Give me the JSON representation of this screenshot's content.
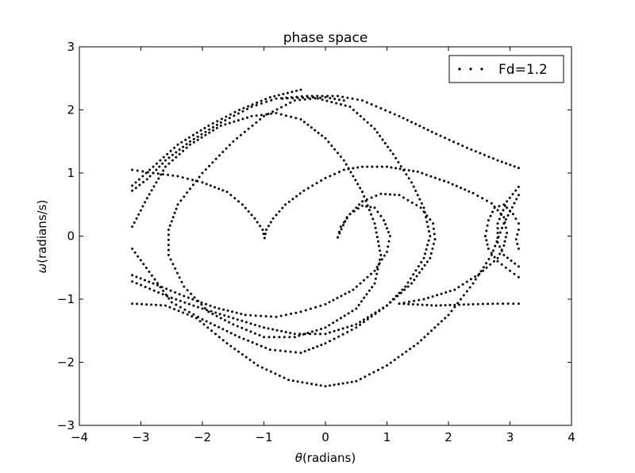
{
  "chart_data": {
    "type": "scatter",
    "title": "phase space",
    "xlabel_symbol": "θ",
    "xlabel_text": "(radians)",
    "ylabel_symbol": "ω",
    "ylabel_text": "(radians/s)",
    "xlim": [
      -4,
      4
    ],
    "ylim": [
      -3,
      3
    ],
    "xticks": [
      -4,
      -3,
      -2,
      -1,
      0,
      1,
      2,
      3,
      4
    ],
    "yticks": [
      -3,
      -2,
      -1,
      0,
      1,
      2,
      3
    ],
    "xtick_labels": [
      "−4",
      "−3",
      "−2",
      "−1",
      "0",
      "1",
      "2",
      "3",
      "4"
    ],
    "ytick_labels": [
      "−3",
      "−2",
      "−1",
      "0",
      "1",
      "2",
      "3"
    ],
    "grid": false,
    "legend_position": "top-right",
    "marker_color": "#000000",
    "series": [
      {
        "name": "Fd=1.2",
        "curves": [
          [
            [
              -3.14,
              1.05
            ],
            [
              -2.8,
              1.0
            ],
            [
              -2.4,
              0.95
            ],
            [
              -2.0,
              0.85
            ],
            [
              -1.6,
              0.7
            ],
            [
              -1.35,
              0.5
            ],
            [
              -1.15,
              0.28
            ],
            [
              -1.02,
              0.1
            ],
            [
              -0.99,
              -0.03
            ]
          ],
          [
            [
              -0.99,
              -0.03
            ],
            [
              -0.96,
              0.1
            ],
            [
              -0.85,
              0.28
            ],
            [
              -0.65,
              0.5
            ],
            [
              -0.35,
              0.72
            ],
            [
              0.0,
              0.92
            ],
            [
              0.3,
              1.05
            ],
            [
              0.6,
              1.1
            ],
            [
              1.0,
              1.1
            ],
            [
              1.5,
              1.02
            ],
            [
              2.0,
              0.85
            ],
            [
              2.4,
              0.68
            ],
            [
              2.7,
              0.52
            ],
            [
              2.9,
              0.3
            ],
            [
              2.95,
              0.05
            ],
            [
              2.9,
              -0.15
            ],
            [
              2.8,
              -0.35
            ],
            [
              2.5,
              -0.6
            ],
            [
              2.1,
              -0.85
            ],
            [
              1.6,
              -1.0
            ],
            [
              1.2,
              -1.07
            ]
          ],
          [
            [
              0.2,
              -0.02
            ],
            [
              0.25,
              0.15
            ],
            [
              0.4,
              0.35
            ],
            [
              0.6,
              0.48
            ],
            [
              0.8,
              0.45
            ],
            [
              0.95,
              0.25
            ],
            [
              1.05,
              0.0
            ],
            [
              1.0,
              -0.25
            ],
            [
              0.8,
              -0.55
            ],
            [
              0.45,
              -0.85
            ],
            [
              0.0,
              -1.08
            ],
            [
              -0.4,
              -1.2
            ],
            [
              -0.8,
              -1.28
            ],
            [
              -1.3,
              -1.25
            ],
            [
              -1.8,
              -1.13
            ],
            [
              -2.3,
              -0.95
            ],
            [
              -2.8,
              -0.75
            ],
            [
              -3.14,
              -0.62
            ]
          ],
          [
            [
              0.2,
              -0.02
            ],
            [
              0.35,
              0.3
            ],
            [
              0.6,
              0.55
            ],
            [
              0.9,
              0.67
            ],
            [
              1.2,
              0.65
            ],
            [
              1.55,
              0.45
            ],
            [
              1.75,
              0.2
            ],
            [
              1.78,
              -0.05
            ],
            [
              1.7,
              -0.35
            ],
            [
              1.4,
              -0.75
            ],
            [
              1.0,
              -1.1
            ],
            [
              0.5,
              -1.4
            ],
            [
              0.0,
              -1.55
            ],
            [
              -0.5,
              -1.55
            ],
            [
              -1.0,
              -1.45
            ],
            [
              -1.5,
              -1.3
            ],
            [
              -2.0,
              -1.15
            ],
            [
              -2.5,
              -0.98
            ],
            [
              -3.14,
              -0.72
            ]
          ],
          [
            [
              -3.14,
              0.72
            ],
            [
              -2.9,
              0.9
            ],
            [
              -2.6,
              1.2
            ],
            [
              -2.2,
              1.5
            ],
            [
              -1.7,
              1.8
            ],
            [
              -1.2,
              2.05
            ],
            [
              -0.8,
              2.18
            ],
            [
              -0.3,
              2.22
            ],
            [
              0.2,
              2.22
            ],
            [
              0.6,
              2.15
            ],
            [
              1.2,
              1.9
            ],
            [
              1.8,
              1.62
            ],
            [
              2.3,
              1.4
            ],
            [
              2.8,
              1.2
            ],
            [
              3.14,
              1.08
            ]
          ],
          [
            [
              -3.14,
              0.8
            ],
            [
              -2.8,
              1.1
            ],
            [
              -2.4,
              1.45
            ],
            [
              -1.9,
              1.75
            ],
            [
              -1.4,
              2.0
            ],
            [
              -0.9,
              2.2
            ],
            [
              -0.4,
              2.32
            ]
          ],
          [
            [
              -3.14,
              0.15
            ],
            [
              -2.9,
              0.6
            ],
            [
              -2.6,
              1.1
            ],
            [
              -2.2,
              1.45
            ],
            [
              -1.7,
              1.75
            ],
            [
              -1.2,
              1.9
            ],
            [
              -0.8,
              1.95
            ],
            [
              -0.4,
              1.85
            ],
            [
              0.0,
              1.55
            ],
            [
              0.3,
              1.2
            ],
            [
              0.6,
              0.7
            ],
            [
              0.8,
              0.2
            ],
            [
              0.9,
              -0.3
            ],
            [
              0.8,
              -0.75
            ],
            [
              0.5,
              -1.15
            ],
            [
              0.0,
              -1.45
            ],
            [
              -0.5,
              -1.6
            ],
            [
              -1.0,
              -1.6
            ],
            [
              -1.5,
              -1.4
            ],
            [
              -1.9,
              -1.2
            ],
            [
              -2.3,
              -0.8
            ],
            [
              -2.55,
              -0.3
            ],
            [
              -2.55,
              0.1
            ],
            [
              -2.4,
              0.5
            ],
            [
              -2.0,
              1.0
            ],
            [
              -1.5,
              1.5
            ],
            [
              -1.0,
              1.9
            ],
            [
              -0.5,
              2.15
            ],
            [
              0.0,
              2.2
            ],
            [
              0.3,
              2.15
            ]
          ],
          [
            [
              -0.7,
              2.18
            ],
            [
              -0.2,
              2.2
            ],
            [
              0.4,
              2.05
            ],
            [
              0.8,
              1.7
            ],
            [
              1.1,
              1.3
            ],
            [
              1.4,
              0.85
            ],
            [
              1.6,
              0.45
            ],
            [
              1.7,
              0.0
            ],
            [
              1.6,
              -0.35
            ],
            [
              1.3,
              -0.8
            ],
            [
              1.0,
              -1.1
            ],
            [
              0.5,
              -1.45
            ],
            [
              0.0,
              -1.7
            ],
            [
              -0.4,
              -1.85
            ],
            [
              -0.9,
              -1.8
            ],
            [
              -1.4,
              -1.6
            ],
            [
              -2.0,
              -1.32
            ],
            [
              -2.5,
              -1.05
            ],
            [
              -3.14,
              -0.2
            ]
          ],
          [
            [
              -3.14,
              -1.07
            ],
            [
              -2.6,
              -1.1
            ],
            [
              -2.1,
              -1.3
            ],
            [
              -1.6,
              -1.7
            ],
            [
              -1.1,
              -2.05
            ],
            [
              -0.6,
              -2.28
            ],
            [
              0.0,
              -2.38
            ],
            [
              0.5,
              -2.3
            ],
            [
              1.0,
              -2.05
            ],
            [
              1.5,
              -1.7
            ],
            [
              2.0,
              -1.25
            ],
            [
              2.4,
              -0.75
            ],
            [
              2.7,
              -0.3
            ],
            [
              2.9,
              0.2
            ],
            [
              3.14,
              0.65
            ]
          ],
          [
            [
              1.2,
              -1.07
            ],
            [
              1.8,
              -1.1
            ],
            [
              2.4,
              -1.08
            ],
            [
              2.8,
              -1.07
            ],
            [
              3.14,
              -1.07
            ]
          ],
          [
            [
              3.14,
              0.78
            ],
            [
              2.95,
              0.55
            ],
            [
              2.8,
              0.2
            ],
            [
              2.8,
              -0.1
            ],
            [
              2.9,
              -0.3
            ],
            [
              3.14,
              -0.48
            ]
          ],
          [
            [
              3.14,
              0.1
            ],
            [
              3.1,
              -0.05
            ],
            [
              3.14,
              -0.2
            ]
          ],
          [
            [
              2.6,
              0.0
            ],
            [
              2.65,
              0.25
            ],
            [
              2.75,
              0.45
            ],
            [
              2.9,
              0.5
            ],
            [
              3.05,
              0.35
            ],
            [
              3.14,
              0.2
            ]
          ],
          [
            [
              2.6,
              0.0
            ],
            [
              2.65,
              -0.2
            ],
            [
              2.8,
              -0.4
            ],
            [
              3.0,
              -0.55
            ],
            [
              3.14,
              -0.65
            ]
          ]
        ]
      }
    ]
  }
}
